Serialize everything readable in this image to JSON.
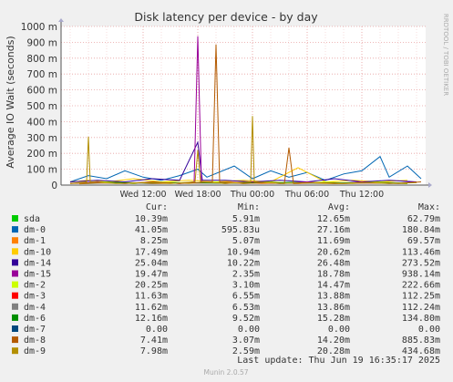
{
  "chart_data": {
    "type": "line",
    "title": "Disk latency per device - by day",
    "ylabel": "Average IO Wait (seconds)",
    "y_ticks": [
      {
        "value": 0,
        "label": "0"
      },
      {
        "value": 0.1,
        "label": "100 m"
      },
      {
        "value": 0.2,
        "label": "200 m"
      },
      {
        "value": 0.3,
        "label": "300 m"
      },
      {
        "value": 0.4,
        "label": "400 m"
      },
      {
        "value": 0.5,
        "label": "500 m"
      },
      {
        "value": 0.6,
        "label": "600 m"
      },
      {
        "value": 0.7,
        "label": "700 m"
      },
      {
        "value": 0.8,
        "label": "800 m"
      },
      {
        "value": 0.9,
        "label": "900 m"
      },
      {
        "value": 1.0,
        "label": "1000 m"
      }
    ],
    "ylim": [
      0,
      1.0
    ],
    "x_ticks": [
      {
        "value": 9,
        "label": "Wed 12:00"
      },
      {
        "value": 15,
        "label": "Wed 18:00"
      },
      {
        "value": 21,
        "label": "Thu 00:00"
      },
      {
        "value": 27,
        "label": "Thu 06:00"
      },
      {
        "value": 33,
        "label": "Thu 12:00"
      }
    ],
    "xlim": [
      0,
      40
    ],
    "grid": true,
    "side_label": "RRDTOOL / TOBI OETIKER",
    "footer": "Munin 2.0.57",
    "last_update": "Last update:  Thu Jun 19 16:35:17 2025",
    "legend_headers": {
      "cur": "Cur:",
      "min": "Min:",
      "avg": "Avg:",
      "max": "Max:"
    },
    "series": [
      {
        "name": "sda",
        "color": "#00cc00",
        "cur": "10.39m",
        "min": "5.91m",
        "avg": "12.65m",
        "max": "62.79m",
        "points": [
          [
            2,
            0.012
          ],
          [
            5,
            0.018
          ],
          [
            8,
            0.01
          ],
          [
            11,
            0.02
          ],
          [
            14,
            0.012
          ],
          [
            17,
            0.015
          ],
          [
            20,
            0.011
          ],
          [
            23,
            0.014
          ],
          [
            26,
            0.018
          ],
          [
            29,
            0.012
          ],
          [
            32,
            0.016
          ],
          [
            35,
            0.013
          ],
          [
            38,
            0.01
          ]
        ]
      },
      {
        "name": "dm-0",
        "color": "#0066b3",
        "cur": "41.05m",
        "min": "595.83u",
        "avg": "27.16m",
        "max": "180.84m",
        "points": [
          [
            1,
            0.02
          ],
          [
            3,
            0.06
          ],
          [
            5,
            0.04
          ],
          [
            7,
            0.09
          ],
          [
            9,
            0.05
          ],
          [
            11,
            0.03
          ],
          [
            13,
            0.06
          ],
          [
            15,
            0.1
          ],
          [
            16,
            0.05
          ],
          [
            19,
            0.12
          ],
          [
            21,
            0.04
          ],
          [
            23,
            0.09
          ],
          [
            25,
            0.05
          ],
          [
            27,
            0.08
          ],
          [
            29,
            0.03
          ],
          [
            31,
            0.07
          ],
          [
            33,
            0.09
          ],
          [
            35,
            0.18
          ],
          [
            36,
            0.05
          ],
          [
            38,
            0.12
          ],
          [
            39.5,
            0.04
          ]
        ]
      },
      {
        "name": "dm-1",
        "color": "#ff8000",
        "cur": "8.25m",
        "min": "5.07m",
        "avg": "11.69m",
        "max": "69.57m",
        "points": [
          [
            2,
            0.008
          ],
          [
            6,
            0.015
          ],
          [
            10,
            0.01
          ],
          [
            14,
            0.012
          ],
          [
            18,
            0.02
          ],
          [
            22,
            0.01
          ],
          [
            26,
            0.013
          ],
          [
            30,
            0.009
          ],
          [
            34,
            0.014
          ],
          [
            38,
            0.01
          ]
        ]
      },
      {
        "name": "dm-10",
        "color": "#ffcc00",
        "cur": "17.49m",
        "min": "10.94m",
        "avg": "20.62m",
        "max": "113.46m",
        "points": [
          [
            1,
            0.02
          ],
          [
            3,
            0.03
          ],
          [
            5,
            0.02
          ],
          [
            8,
            0.04
          ],
          [
            11,
            0.02
          ],
          [
            14,
            0.03
          ],
          [
            17,
            0.02
          ],
          [
            20,
            0.03
          ],
          [
            23,
            0.02
          ],
          [
            26,
            0.11
          ],
          [
            29,
            0.02
          ],
          [
            32,
            0.03
          ],
          [
            35,
            0.02
          ],
          [
            38,
            0.03
          ]
        ]
      },
      {
        "name": "dm-14",
        "color": "#330099",
        "cur": "25.04m",
        "min": "10.22m",
        "avg": "26.48m",
        "max": "273.52m",
        "points": [
          [
            1,
            0.02
          ],
          [
            4,
            0.03
          ],
          [
            7,
            0.02
          ],
          [
            10,
            0.04
          ],
          [
            13,
            0.03
          ],
          [
            15,
            0.27
          ],
          [
            15.5,
            0.03
          ],
          [
            18,
            0.03
          ],
          [
            21,
            0.02
          ],
          [
            24,
            0.03
          ],
          [
            27,
            0.02
          ],
          [
            30,
            0.04
          ],
          [
            33,
            0.02
          ],
          [
            36,
            0.03
          ],
          [
            39,
            0.02
          ]
        ]
      },
      {
        "name": "dm-15",
        "color": "#990099",
        "cur": "19.47m",
        "min": "2.35m",
        "avg": "18.78m",
        "max": "938.14m",
        "points": [
          [
            1,
            0.01
          ],
          [
            4,
            0.02
          ],
          [
            7,
            0.01
          ],
          [
            10,
            0.02
          ],
          [
            13,
            0.01
          ],
          [
            14.6,
            0.02
          ],
          [
            15,
            0.938
          ],
          [
            15.4,
            0.02
          ],
          [
            18,
            0.01
          ],
          [
            21,
            0.02
          ],
          [
            24,
            0.01
          ],
          [
            27,
            0.02
          ],
          [
            30,
            0.01
          ],
          [
            33,
            0.02
          ],
          [
            36,
            0.01
          ],
          [
            39,
            0.02
          ]
        ]
      },
      {
        "name": "dm-2",
        "color": "#ccff00",
        "cur": "20.25m",
        "min": "3.10m",
        "avg": "14.47m",
        "max": "222.66m",
        "points": [
          [
            2,
            0.01
          ],
          [
            5,
            0.02
          ],
          [
            8,
            0.01
          ],
          [
            11,
            0.02
          ],
          [
            14,
            0.01
          ],
          [
            17,
            0.02
          ],
          [
            20,
            0.01
          ],
          [
            23,
            0.02
          ],
          [
            26,
            0.01
          ],
          [
            29,
            0.02
          ],
          [
            32,
            0.01
          ],
          [
            35,
            0.02
          ],
          [
            38,
            0.01
          ]
        ]
      },
      {
        "name": "dm-3",
        "color": "#ff0000",
        "cur": "11.63m",
        "min": "6.55m",
        "avg": "13.88m",
        "max": "112.25m",
        "points": [
          [
            2,
            0.012
          ],
          [
            6,
            0.015
          ],
          [
            10,
            0.01
          ],
          [
            14,
            0.014
          ],
          [
            18,
            0.012
          ],
          [
            22,
            0.015
          ],
          [
            26,
            0.011
          ],
          [
            30,
            0.013
          ],
          [
            34,
            0.012
          ],
          [
            38,
            0.014
          ]
        ]
      },
      {
        "name": "dm-4",
        "color": "#808080",
        "cur": "11.62m",
        "min": "6.53m",
        "avg": "13.86m",
        "max": "112.24m",
        "points": [
          [
            2,
            0.011
          ],
          [
            6,
            0.014
          ],
          [
            10,
            0.011
          ],
          [
            14,
            0.013
          ],
          [
            18,
            0.011
          ],
          [
            22,
            0.014
          ],
          [
            26,
            0.012
          ],
          [
            30,
            0.012
          ],
          [
            34,
            0.013
          ],
          [
            38,
            0.013
          ]
        ]
      },
      {
        "name": "dm-6",
        "color": "#008f00",
        "cur": "12.16m",
        "min": "9.52m",
        "avg": "15.28m",
        "max": "134.80m",
        "points": [
          [
            2,
            0.012
          ],
          [
            6,
            0.016
          ],
          [
            10,
            0.013
          ],
          [
            14,
            0.015
          ],
          [
            18,
            0.012
          ],
          [
            22,
            0.016
          ],
          [
            26,
            0.013
          ],
          [
            30,
            0.014
          ],
          [
            34,
            0.015
          ],
          [
            38,
            0.012
          ]
        ]
      },
      {
        "name": "dm-7",
        "color": "#00487d",
        "cur": "0.00",
        "min": "0.00",
        "avg": "0.00",
        "max": "0.00",
        "points": [
          [
            0,
            0
          ],
          [
            40,
            0
          ]
        ]
      },
      {
        "name": "dm-8",
        "color": "#b35a00",
        "cur": "7.41m",
        "min": "3.07m",
        "avg": "14.20m",
        "max": "885.83m",
        "points": [
          [
            1,
            0.01
          ],
          [
            4,
            0.015
          ],
          [
            7,
            0.01
          ],
          [
            10,
            0.02
          ],
          [
            13,
            0.01
          ],
          [
            16.6,
            0.02
          ],
          [
            17,
            0.886
          ],
          [
            17.4,
            0.02
          ],
          [
            20,
            0.01
          ],
          [
            23,
            0.015
          ],
          [
            24.5,
            0.01
          ],
          [
            25,
            0.235
          ],
          [
            25.5,
            0.01
          ],
          [
            28,
            0.015
          ],
          [
            31,
            0.01
          ],
          [
            34,
            0.015
          ],
          [
            37,
            0.01
          ],
          [
            39.5,
            0.02
          ]
        ]
      },
      {
        "name": "dm-9",
        "color": "#b38f00",
        "cur": "7.98m",
        "min": "2.59m",
        "avg": "20.28m",
        "max": "434.68m",
        "points": [
          [
            1,
            0.01
          ],
          [
            2.8,
            0.02
          ],
          [
            3,
            0.305
          ],
          [
            3.2,
            0.02
          ],
          [
            6,
            0.01
          ],
          [
            9,
            0.015
          ],
          [
            12,
            0.01
          ],
          [
            14.7,
            0.02
          ],
          [
            15,
            0.22
          ],
          [
            15.3,
            0.02
          ],
          [
            18,
            0.01
          ],
          [
            20.8,
            0.02
          ],
          [
            21,
            0.435
          ],
          [
            21.2,
            0.02
          ],
          [
            24,
            0.01
          ],
          [
            27,
            0.015
          ],
          [
            30,
            0.01
          ],
          [
            33,
            0.015
          ],
          [
            36,
            0.01
          ],
          [
            39,
            0.015
          ]
        ]
      }
    ]
  }
}
